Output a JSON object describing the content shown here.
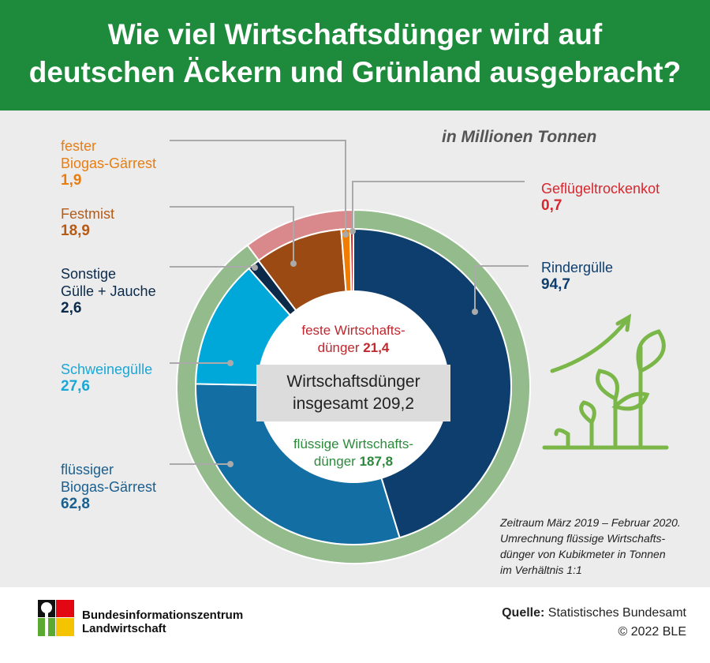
{
  "title_line1": "Wie viel Wirtschaftsdünger wird auf",
  "title_line2": "deutschen Äckern und Grünland ausgebracht?",
  "unit": "in Millionen Tonnen",
  "chart_data": {
    "type": "pie",
    "title": "Wie viel Wirtschaftsdünger wird auf deutschen Äckern und Grünland ausgebracht?",
    "unit": "Millionen Tonnen",
    "inner_series": [
      {
        "name": "Rindergülle",
        "value": 94.7,
        "color": "#0e3e6e"
      },
      {
        "name": "flüssiger Biogas-Gärrest",
        "value": 62.8,
        "color": "#136ea3"
      },
      {
        "name": "Schweinegülle",
        "value": 27.6,
        "color": "#00a8d9"
      },
      {
        "name": "Sonstige Gülle + Jauche",
        "value": 2.6,
        "color": "#0b2a4a"
      },
      {
        "name": "Festmist",
        "value": 18.9,
        "color": "#9b4a14"
      },
      {
        "name": "fester Biogas-Gärrest",
        "value": 1.9,
        "color": "#f07d00"
      },
      {
        "name": "Geflügeltrockenkot",
        "value": 0.7,
        "color": "#d8262e"
      }
    ],
    "outer_series": [
      {
        "name": "flüssige Wirtschaftsdünger",
        "value": 187.8,
        "color": "#93bb8c"
      },
      {
        "name": "feste Wirtschaftsdünger",
        "value": 21.4,
        "color": "#d9898c"
      }
    ],
    "total": 209.2
  },
  "labels": {
    "fester_biogas": {
      "name1": "fester",
      "name2": "Biogas-Gärrest",
      "value": "1,9"
    },
    "festmist": {
      "name": "Festmist",
      "value": "18,9"
    },
    "sonstige": {
      "name1": "Sonstige",
      "name2": "Gülle + Jauche",
      "value": "2,6"
    },
    "schwein": {
      "name": "Schweinegülle",
      "value": "27,6"
    },
    "fl_biogas": {
      "name1": "flüssiger",
      "name2": "Biogas-Gärrest",
      "value": "62,8"
    },
    "gefluegel": {
      "name": "Geflügeltrockenkot",
      "value": "0,7"
    },
    "rind": {
      "name": "Rindergülle",
      "value": "94,7"
    }
  },
  "center": {
    "feste1": "feste Wirtschafts-",
    "feste2": "dünger",
    "feste_val": "21,4",
    "total1": "Wirtschaftsdünger",
    "total2": "insgesamt",
    "total_val": "209,2",
    "fl1": "flüssige Wirtschafts-",
    "fl2": "dünger",
    "fl_val": "187,8"
  },
  "note": [
    "Zeitraum März 2019 – Februar 2020.",
    "Umrechnung flüssige Wirtschafts-",
    "dünger von Kubikmeter in Tonnen",
    "im Verhältnis 1:1"
  ],
  "footer": {
    "org1": "Bundesinformationszentrum",
    "org2": "Landwirtschaft",
    "source_label": "Quelle:",
    "source": "Statistisches Bundesamt",
    "copyright": "© 2022 BLE"
  }
}
